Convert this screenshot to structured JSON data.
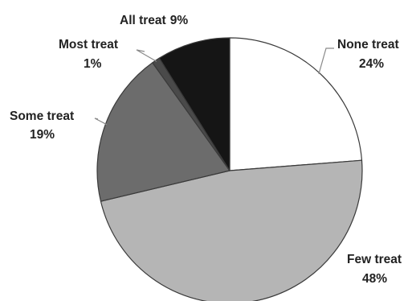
{
  "chart_data": {
    "type": "pie",
    "title": "",
    "slices": [
      {
        "label": "None treat",
        "value": 24,
        "value_label": "24%",
        "color": "#ffffff"
      },
      {
        "label": "Few treat",
        "value": 48,
        "value_label": "48%",
        "color": "#b5b5b5"
      },
      {
        "label": "Some treat",
        "value": 19,
        "value_label": "19%",
        "color": "#6c6c6c"
      },
      {
        "label": "Most treat",
        "value": 1,
        "value_label": "1%",
        "color": "#4a4a4a"
      },
      {
        "label": "All treat",
        "value": 9,
        "value_label": "9%",
        "color": "#151515"
      }
    ],
    "start_angle": "12 o'clock",
    "direction": "clockwise",
    "legend": "none"
  }
}
